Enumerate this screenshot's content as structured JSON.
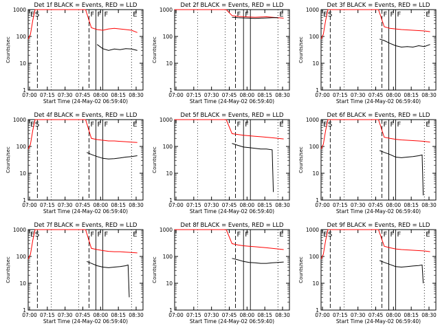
{
  "chart_data": [
    {
      "type": "line",
      "title": "Det 1f BLACK = Events, RED = LLD",
      "xlabel": "Start Time (24-May-02 06:59:40)",
      "ylabel": "Counts/sec",
      "yscale": "log",
      "ylim": [
        1,
        1000
      ],
      "xlim": [
        0,
        100
      ],
      "x_ticks": [
        "07:00",
        "07:15",
        "07:30",
        "07:45",
        "08:00",
        "08:15",
        "08:30"
      ],
      "y_ticks": [
        "1",
        "10",
        "100",
        "1000"
      ],
      "markers": [
        "E",
        "S",
        "F",
        "F",
        "F",
        "E"
      ],
      "series": [
        {
          "color": "#ff0000",
          "x": [
            0,
            2,
            4,
            6,
            9,
            12,
            16,
            20,
            25,
            30,
            35,
            40,
            45,
            50,
            55,
            60,
            65,
            70,
            75,
            80,
            85,
            90,
            95
          ],
          "y": [
            80,
            120,
            400,
            1000,
            1000,
            1000,
            1000,
            1000,
            1000,
            1000,
            1000,
            1000,
            1000,
            1000,
            210,
            180,
            170,
            190,
            200,
            190,
            180,
            170,
            140
          ]
        },
        {
          "color": "#000000",
          "x": [
            0,
            4,
            9,
            14,
            19,
            24,
            29,
            34,
            39,
            44,
            47,
            51,
            52,
            55,
            60,
            65,
            70,
            75,
            80,
            85,
            90,
            95
          ],
          "y": [
            null,
            null,
            null,
            null,
            null,
            null,
            null,
            null,
            null,
            null,
            null,
            null,
            null,
            null,
            50,
            35,
            30,
            34,
            32,
            35,
            34,
            30
          ]
        }
      ]
    },
    {
      "type": "line",
      "title": "Det 2f BLACK = Events, RED = LLD",
      "xlabel": "Start Time (24-May-02 06:59:40)",
      "ylabel": "Counts/sec",
      "yscale": "log",
      "ylim": [
        1,
        1000
      ],
      "xlim": [
        0,
        100
      ],
      "x_ticks": [
        "07:00",
        "07:15",
        "07:30",
        "07:45",
        "08:00",
        "08:15",
        "08:30"
      ],
      "y_ticks": [
        "1",
        "10",
        "100",
        "1000"
      ],
      "markers": [
        "F",
        "F",
        "E"
      ],
      "series": [
        {
          "color": "#ff0000",
          "x": [
            0,
            5,
            10,
            15,
            20,
            25,
            30,
            35,
            40,
            45,
            50,
            55,
            60,
            65,
            70,
            75,
            80,
            85,
            90,
            95
          ],
          "y": [
            1000,
            1000,
            1000,
            1000,
            1000,
            1000,
            1000,
            1000,
            1000,
            1000,
            600,
            560,
            540,
            530,
            520,
            530,
            540,
            520,
            500,
            480
          ]
        },
        {
          "color": "#000000",
          "x": [
            50,
            55,
            60,
            65,
            70,
            75,
            80,
            85,
            90
          ],
          "y": [
            520,
            500,
            490,
            480,
            470,
            480,
            490,
            500,
            500
          ]
        }
      ]
    },
    {
      "type": "line",
      "title": "Det 3f BLACK = Events, RED = LLD",
      "xlabel": "Start Time (24-May-02 06:59:40)",
      "ylabel": "Counts/sec",
      "yscale": "log",
      "ylim": [
        1,
        1000
      ],
      "xlim": [
        0,
        100
      ],
      "x_ticks": [
        "07:00",
        "07:15",
        "07:30",
        "07:45",
        "08:00",
        "08:15",
        "08:30"
      ],
      "y_ticks": [
        "1",
        "10",
        "100",
        "1000"
      ],
      "markers": [
        "E",
        "S",
        "F",
        "F",
        "F",
        "E"
      ],
      "series": [
        {
          "color": "#ff0000",
          "x": [
            0,
            2,
            4,
            6,
            9,
            12,
            16,
            20,
            25,
            30,
            35,
            40,
            45,
            50,
            55,
            60,
            65,
            70,
            75,
            80,
            85,
            90,
            95
          ],
          "y": [
            80,
            120,
            400,
            1000,
            1000,
            1000,
            1000,
            1000,
            1000,
            1000,
            1000,
            1000,
            1000,
            1000,
            230,
            200,
            190,
            180,
            175,
            170,
            165,
            160,
            150
          ]
        },
        {
          "color": "#000000",
          "x": [
            51,
            55,
            60,
            65,
            70,
            75,
            80,
            85,
            90,
            95
          ],
          "y": [
            80,
            70,
            55,
            45,
            40,
            42,
            40,
            45,
            42,
            50
          ]
        }
      ]
    },
    {
      "type": "line",
      "title": "Det 4f BLACK = Events, RED = LLD",
      "xlabel": "Start Time (24-May-02 06:59:40)",
      "ylabel": "Counts/sec",
      "yscale": "log",
      "ylim": [
        1,
        1000
      ],
      "xlim": [
        0,
        100
      ],
      "x_ticks": [
        "07:00",
        "07:15",
        "07:30",
        "07:45",
        "08:00",
        "08:15",
        "08:30"
      ],
      "y_ticks": [
        "1",
        "10",
        "100",
        "1000"
      ],
      "markers": [
        "E",
        "S",
        "F",
        "F",
        "F",
        "E"
      ],
      "series": [
        {
          "color": "#ff0000",
          "x": [
            0,
            2,
            4,
            6,
            9,
            12,
            16,
            20,
            25,
            30,
            35,
            40,
            45,
            50,
            55,
            60,
            65,
            70,
            75,
            80,
            85,
            90,
            95
          ],
          "y": [
            80,
            120,
            400,
            1000,
            1000,
            1000,
            1000,
            1000,
            1000,
            1000,
            1000,
            1000,
            1000,
            1000,
            200,
            180,
            170,
            160,
            160,
            155,
            150,
            145,
            140
          ]
        },
        {
          "color": "#000000",
          "x": [
            51,
            55,
            60,
            65,
            70,
            75,
            80,
            85,
            90,
            95
          ],
          "y": [
            60,
            50,
            42,
            36,
            34,
            35,
            37,
            40,
            42,
            45
          ]
        }
      ]
    },
    {
      "type": "line",
      "title": "Det 5f BLACK = Events, RED = LLD",
      "xlabel": "Start Time (24-May-02 06:59:40)",
      "ylabel": "Counts/sec",
      "yscale": "log",
      "ylim": [
        1,
        1000
      ],
      "xlim": [
        0,
        100
      ],
      "x_ticks": [
        "07:00",
        "07:15",
        "07:30",
        "07:45",
        "08:00",
        "08:15",
        "08:30"
      ],
      "y_ticks": [
        "1",
        "10",
        "100",
        "1000"
      ],
      "markers": [
        "F",
        "F",
        "E"
      ],
      "series": [
        {
          "color": "#ff0000",
          "x": [
            0,
            5,
            10,
            15,
            20,
            25,
            30,
            35,
            40,
            45,
            50,
            55,
            60,
            65,
            70,
            75,
            80,
            85,
            90,
            95
          ],
          "y": [
            1000,
            1000,
            1000,
            1000,
            1000,
            1000,
            1000,
            1000,
            1000,
            1000,
            300,
            280,
            260,
            250,
            240,
            230,
            220,
            210,
            200,
            190
          ]
        },
        {
          "color": "#000000",
          "x": [
            50,
            55,
            60,
            65,
            70,
            75,
            80,
            85,
            86
          ],
          "y": [
            130,
            110,
            95,
            90,
            85,
            80,
            80,
            75,
            2
          ]
        }
      ]
    },
    {
      "type": "line",
      "title": "Det 6f BLACK = Events, RED = LLD",
      "xlabel": "Start Time (24-May-02 06:59:40)",
      "ylabel": "Counts/sec",
      "yscale": "log",
      "ylim": [
        1,
        1000
      ],
      "xlim": [
        0,
        100
      ],
      "x_ticks": [
        "07:00",
        "07:15",
        "07:30",
        "07:45",
        "08:00",
        "08:15",
        "08:30"
      ],
      "y_ticks": [
        "1",
        "10",
        "100",
        "1000"
      ],
      "markers": [
        "E",
        "S",
        "F",
        "F",
        "F",
        "E"
      ],
      "series": [
        {
          "color": "#ff0000",
          "x": [
            0,
            2,
            4,
            6,
            9,
            12,
            16,
            20,
            25,
            30,
            35,
            40,
            45,
            50,
            55,
            60,
            65,
            70,
            75,
            80,
            85,
            90,
            95
          ],
          "y": [
            80,
            120,
            400,
            1000,
            1000,
            1000,
            1000,
            1000,
            1000,
            1000,
            1000,
            1000,
            1000,
            1000,
            220,
            200,
            185,
            175,
            170,
            165,
            160,
            155,
            145
          ]
        },
        {
          "color": "#000000",
          "x": [
            51,
            55,
            60,
            65,
            70,
            75,
            80,
            85,
            88,
            89
          ],
          "y": [
            70,
            60,
            50,
            40,
            38,
            40,
            42,
            45,
            48,
            1.5
          ]
        }
      ]
    },
    {
      "type": "line",
      "title": "Det 7f BLACK = Events, RED = LLD",
      "xlabel": "Start Time (24-May-02 06:59:40)",
      "ylabel": "Counts/sec",
      "yscale": "log",
      "ylim": [
        1,
        1000
      ],
      "xlim": [
        0,
        100
      ],
      "x_ticks": [
        "07:00",
        "07:15",
        "07:30",
        "07:45",
        "08:00",
        "08:15",
        "08:30"
      ],
      "y_ticks": [
        "1",
        "10",
        "100",
        "1000"
      ],
      "markers": [
        "E",
        "S",
        "F",
        "F",
        "F",
        "E"
      ],
      "series": [
        {
          "color": "#ff0000",
          "x": [
            0,
            2,
            4,
            6,
            9,
            12,
            16,
            20,
            25,
            30,
            35,
            40,
            45,
            50,
            55,
            60,
            65,
            70,
            75,
            80,
            85,
            90,
            95
          ],
          "y": [
            80,
            120,
            400,
            1000,
            1000,
            1000,
            1000,
            1000,
            1000,
            1000,
            1000,
            1000,
            1000,
            1000,
            200,
            180,
            165,
            155,
            150,
            150,
            145,
            140,
            135
          ]
        },
        {
          "color": "#000000",
          "x": [
            51,
            55,
            60,
            65,
            70,
            75,
            80,
            85,
            87,
            88
          ],
          "y": [
            65,
            55,
            45,
            40,
            38,
            40,
            42,
            45,
            48,
            3
          ]
        }
      ]
    },
    {
      "type": "line",
      "title": "Det 8f BLACK = Events, RED = LLD",
      "xlabel": "Start Time (24-May-02 06:59:40)",
      "ylabel": "Counts/sec",
      "yscale": "log",
      "ylim": [
        1,
        1000
      ],
      "xlim": [
        0,
        100
      ],
      "x_ticks": [
        "07:00",
        "07:15",
        "07:30",
        "07:45",
        "08:00",
        "08:15",
        "08:30"
      ],
      "y_ticks": [
        "1",
        "10",
        "100",
        "1000"
      ],
      "markers": [
        "F",
        "F",
        "E"
      ],
      "series": [
        {
          "color": "#ff0000",
          "x": [
            0,
            5,
            10,
            15,
            20,
            25,
            30,
            35,
            40,
            45,
            50,
            55,
            60,
            65,
            70,
            75,
            80,
            85,
            90,
            95
          ],
          "y": [
            1000,
            1000,
            1000,
            1000,
            1000,
            1000,
            1000,
            1000,
            1000,
            1000,
            300,
            270,
            250,
            240,
            230,
            220,
            210,
            200,
            190,
            180
          ]
        },
        {
          "color": "#000000",
          "x": [
            50,
            55,
            60,
            65,
            70,
            75,
            80,
            85,
            90,
            95
          ],
          "y": [
            85,
            75,
            65,
            60,
            58,
            55,
            55,
            58,
            60,
            62
          ]
        }
      ]
    },
    {
      "type": "line",
      "title": "Det 9f BLACK = Events, RED = LLD",
      "xlabel": "Start Time (24-May-02 06:59:40)",
      "ylabel": "Counts/sec",
      "yscale": "log",
      "ylim": [
        1,
        1000
      ],
      "xlim": [
        0,
        100
      ],
      "x_ticks": [
        "07:00",
        "07:15",
        "07:30",
        "07:45",
        "08:00",
        "08:15",
        "08:30"
      ],
      "y_ticks": [
        "1",
        "10",
        "100",
        "1000"
      ],
      "markers": [
        "E",
        "S",
        "F",
        "F",
        "F",
        "E"
      ],
      "series": [
        {
          "color": "#ff0000",
          "x": [
            0,
            2,
            4,
            6,
            9,
            12,
            16,
            20,
            25,
            30,
            35,
            40,
            45,
            50,
            55,
            60,
            65,
            70,
            75,
            80,
            85,
            90,
            95
          ],
          "y": [
            80,
            120,
            400,
            1000,
            1000,
            1000,
            1000,
            1000,
            1000,
            1000,
            1000,
            1000,
            1000,
            1000,
            240,
            210,
            190,
            180,
            175,
            170,
            165,
            160,
            150
          ]
        },
        {
          "color": "#000000",
          "x": [
            51,
            55,
            60,
            65,
            70,
            75,
            80,
            85,
            88,
            89
          ],
          "y": [
            70,
            60,
            50,
            42,
            40,
            42,
            44,
            46,
            48,
            10
          ]
        }
      ]
    }
  ]
}
